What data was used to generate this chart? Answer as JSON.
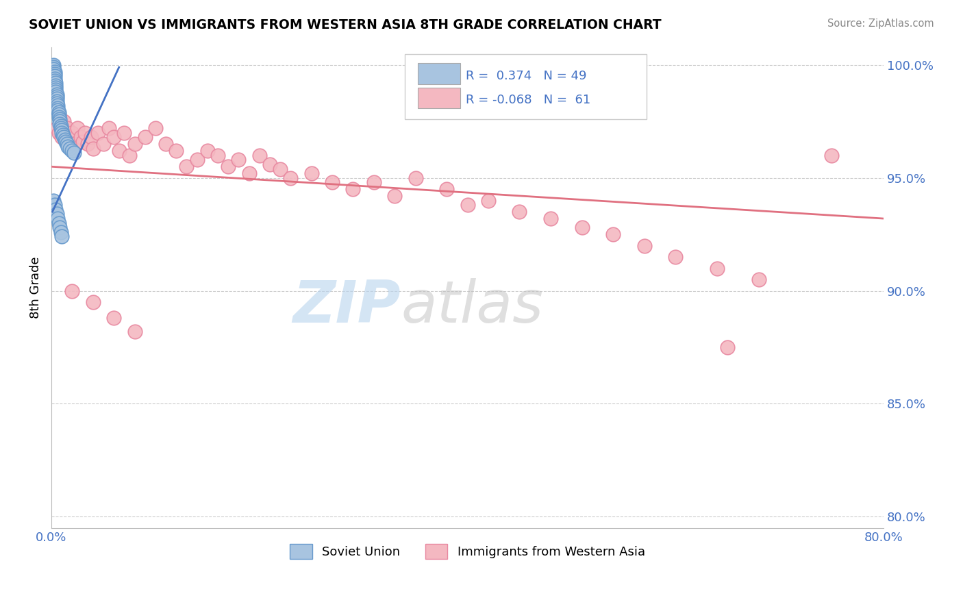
{
  "title": "SOVIET UNION VS IMMIGRANTS FROM WESTERN ASIA 8TH GRADE CORRELATION CHART",
  "source": "Source: ZipAtlas.com",
  "ylabel": "8th Grade",
  "xlim": [
    0.0,
    0.8
  ],
  "ylim": [
    0.795,
    1.008
  ],
  "ytick_vals": [
    0.8,
    0.85,
    0.9,
    0.95,
    1.0
  ],
  "ytick_labels": [
    "80.0%",
    "85.0%",
    "90.0%",
    "95.0%",
    "100.0%"
  ],
  "xtick_vals": [
    0.0,
    0.1,
    0.2,
    0.3,
    0.4,
    0.5,
    0.6,
    0.7,
    0.8
  ],
  "xtick_labels": [
    "0.0%",
    "",
    "",
    "",
    "",
    "",
    "",
    "",
    "80.0%"
  ],
  "R_soviet": 0.374,
  "N_soviet": 49,
  "R_western_asia": -0.068,
  "N_western_asia": 61,
  "soviet_color": "#a8c4e0",
  "soviet_edge_color": "#6699cc",
  "western_asia_color": "#f4b8c1",
  "western_asia_edge_color": "#e888a0",
  "trendline_soviet_color": "#4472c4",
  "trendline_western_asia_color": "#e07080",
  "background_color": "#ffffff",
  "grid_color": "#cccccc",
  "trendline_wa_x0": 0.0,
  "trendline_wa_x1": 0.8,
  "trendline_wa_y0": 0.955,
  "trendline_wa_y1": 0.932,
  "trendline_su_x0": 0.001,
  "trendline_su_x1": 0.065,
  "trendline_su_y0": 0.935,
  "trendline_su_y1": 0.999,
  "soviet_x": [
    0.002,
    0.002,
    0.002,
    0.003,
    0.003,
    0.003,
    0.003,
    0.003,
    0.004,
    0.004,
    0.004,
    0.004,
    0.004,
    0.005,
    0.005,
    0.005,
    0.005,
    0.005,
    0.006,
    0.006,
    0.006,
    0.007,
    0.007,
    0.007,
    0.008,
    0.008,
    0.008,
    0.009,
    0.009,
    0.01,
    0.01,
    0.011,
    0.012,
    0.013,
    0.014,
    0.015,
    0.016,
    0.018,
    0.02,
    0.022,
    0.002,
    0.003,
    0.004,
    0.005,
    0.006,
    0.007,
    0.008,
    0.009,
    0.01
  ],
  "soviet_y": [
    1.0,
    0.999,
    0.998,
    0.997,
    0.996,
    0.995,
    0.994,
    0.993,
    0.992,
    0.991,
    0.99,
    0.989,
    0.988,
    0.987,
    0.986,
    0.985,
    0.984,
    0.983,
    0.982,
    0.981,
    0.98,
    0.979,
    0.978,
    0.977,
    0.976,
    0.975,
    0.974,
    0.973,
    0.972,
    0.971,
    0.97,
    0.969,
    0.968,
    0.967,
    0.966,
    0.965,
    0.964,
    0.963,
    0.962,
    0.961,
    0.94,
    0.938,
    0.936,
    0.934,
    0.932,
    0.93,
    0.928,
    0.926,
    0.924
  ],
  "wa_x": [
    0.005,
    0.007,
    0.01,
    0.012,
    0.015,
    0.018,
    0.02,
    0.022,
    0.025,
    0.028,
    0.03,
    0.032,
    0.035,
    0.038,
    0.04,
    0.045,
    0.05,
    0.055,
    0.06,
    0.065,
    0.07,
    0.075,
    0.08,
    0.09,
    0.1,
    0.11,
    0.12,
    0.13,
    0.14,
    0.15,
    0.16,
    0.17,
    0.18,
    0.19,
    0.2,
    0.21,
    0.22,
    0.23,
    0.25,
    0.27,
    0.29,
    0.31,
    0.33,
    0.35,
    0.38,
    0.4,
    0.42,
    0.45,
    0.48,
    0.51,
    0.54,
    0.57,
    0.6,
    0.64,
    0.68,
    0.02,
    0.04,
    0.06,
    0.08,
    0.75,
    0.65
  ],
  "wa_y": [
    0.972,
    0.97,
    0.968,
    0.975,
    0.972,
    0.968,
    0.97,
    0.965,
    0.972,
    0.968,
    0.966,
    0.97,
    0.965,
    0.968,
    0.963,
    0.97,
    0.965,
    0.972,
    0.968,
    0.962,
    0.97,
    0.96,
    0.965,
    0.968,
    0.972,
    0.965,
    0.962,
    0.955,
    0.958,
    0.962,
    0.96,
    0.955,
    0.958,
    0.952,
    0.96,
    0.956,
    0.954,
    0.95,
    0.952,
    0.948,
    0.945,
    0.948,
    0.942,
    0.95,
    0.945,
    0.938,
    0.94,
    0.935,
    0.932,
    0.928,
    0.925,
    0.92,
    0.915,
    0.91,
    0.905,
    0.9,
    0.895,
    0.888,
    0.882,
    0.96,
    0.875
  ]
}
